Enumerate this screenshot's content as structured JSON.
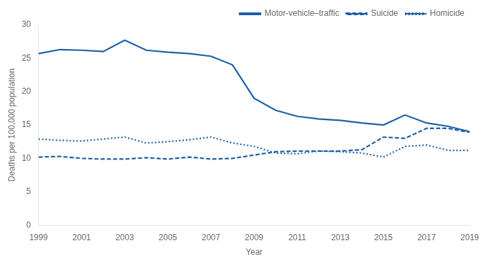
{
  "chart_data": {
    "type": "line",
    "x": [
      1999,
      2000,
      2001,
      2002,
      2003,
      2004,
      2005,
      2006,
      2007,
      2008,
      2009,
      2010,
      2011,
      2012,
      2013,
      2014,
      2015,
      2016,
      2017,
      2018,
      2019
    ],
    "series": [
      {
        "name": "Motor-vehicle–traffic",
        "color": "#1a5fa8",
        "line_style": "solid",
        "values": [
          25.7,
          26.3,
          26.2,
          26.0,
          27.7,
          26.2,
          25.9,
          25.7,
          25.3,
          24.0,
          19.0,
          17.2,
          16.3,
          15.9,
          15.7,
          15.3,
          15.0,
          16.5,
          15.3,
          14.8,
          14.0
        ]
      },
      {
        "name": "Suicide",
        "color": "#1a5fa8",
        "line_style": "dashed",
        "values": [
          10.2,
          10.3,
          10.0,
          9.9,
          9.9,
          10.1,
          9.9,
          10.2,
          9.9,
          10.0,
          10.5,
          11.0,
          11.1,
          11.1,
          11.1,
          11.3,
          13.2,
          13.0,
          14.5,
          14.5,
          13.9
        ]
      },
      {
        "name": "Homicide",
        "color": "#1a5fa8",
        "line_style": "dotted",
        "values": [
          12.9,
          12.7,
          12.6,
          12.9,
          13.2,
          12.3,
          12.5,
          12.8,
          13.2,
          12.3,
          11.8,
          10.8,
          10.7,
          11.1,
          11.0,
          10.8,
          10.2,
          11.8,
          12.0,
          11.2,
          11.2
        ]
      }
    ],
    "xlabel": "Year",
    "ylabel": "Deaths per 100,000 population",
    "xlim": [
      1999,
      2019
    ],
    "xticks": [
      1999,
      2001,
      2003,
      2005,
      2007,
      2009,
      2011,
      2013,
      2015,
      2017,
      2019
    ],
    "ylim": [
      0,
      30
    ],
    "yticks": [
      0,
      5,
      10,
      15,
      20,
      25,
      30
    ],
    "grid": false,
    "legend": "upper right"
  }
}
